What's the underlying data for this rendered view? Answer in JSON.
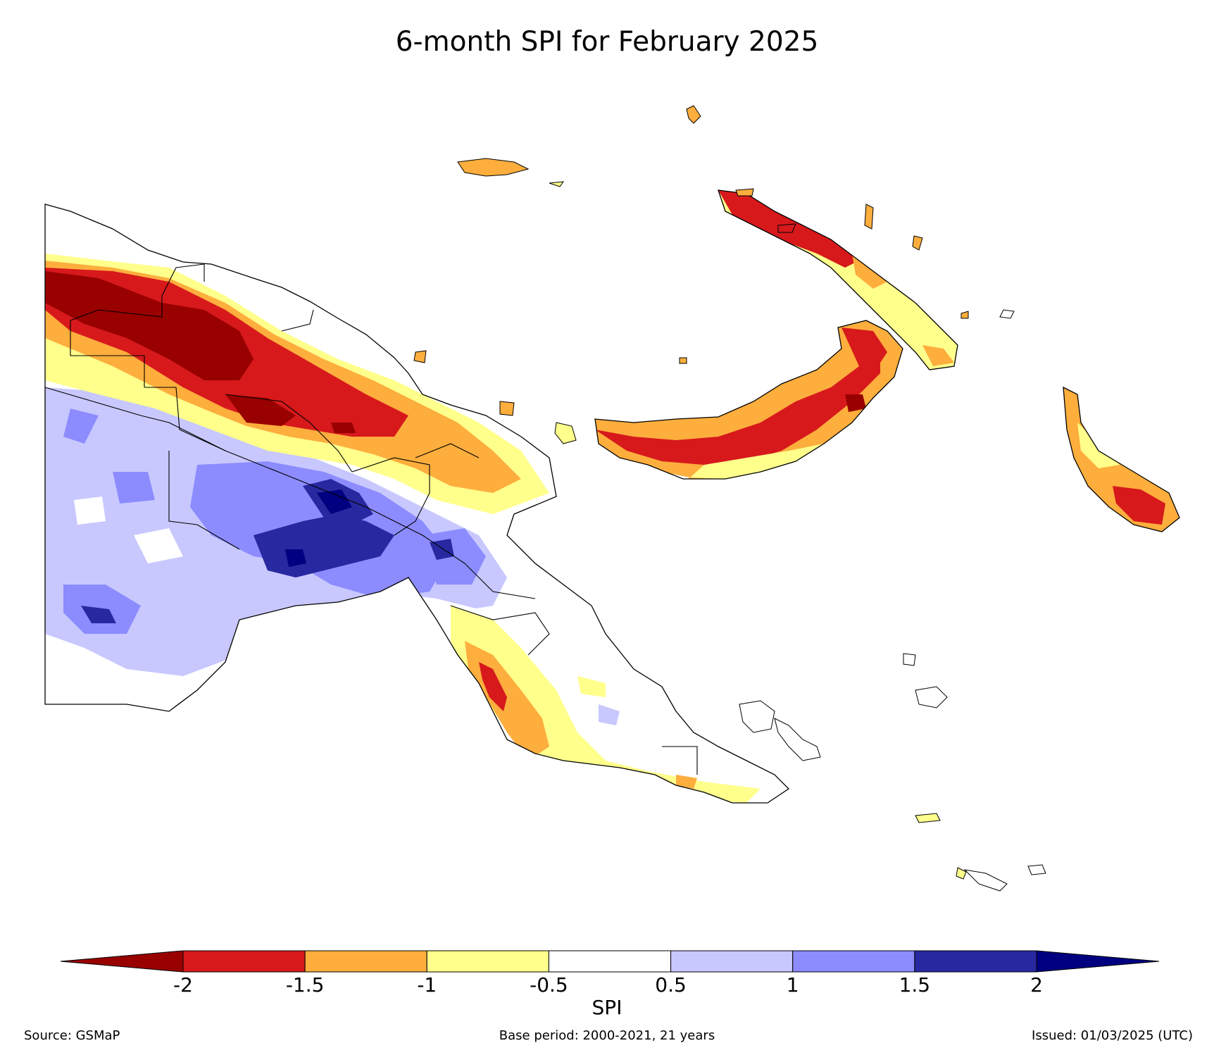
{
  "title": "6-month SPI for February 2025",
  "colors": {
    "below_-2": "#990000",
    "-2_to_-1.5": "#d7191c",
    "-1.5_to_-1": "#fdae3d",
    "-1_to_-0.5": "#ffff8c",
    "-0.5_to_0.5": "#ffffff",
    "0.5_to_1": "#c8c8ff",
    "1_to_1.5": "#8c8cff",
    "1.5_to_2": "#2828a0",
    "above_2": "#000080",
    "boundary": "#000000"
  },
  "colorbar": {
    "label": "SPI",
    "ticks": [
      "-2",
      "-1.5",
      "-1",
      "-0.5",
      "0.5",
      "1",
      "1.5",
      "2"
    ],
    "tick_values": [
      -2,
      -1.5,
      -1,
      -0.5,
      0.5,
      1,
      1.5,
      2
    ],
    "bins": [
      {
        "from": null,
        "to": -2,
        "color": "#990000",
        "extend": "min"
      },
      {
        "from": -2,
        "to": -1.5,
        "color": "#d7191c"
      },
      {
        "from": -1.5,
        "to": -1,
        "color": "#fdae3d"
      },
      {
        "from": -1,
        "to": -0.5,
        "color": "#ffff8c"
      },
      {
        "from": -0.5,
        "to": 0.5,
        "color": "#ffffff"
      },
      {
        "from": 0.5,
        "to": 1,
        "color": "#c8c8ff"
      },
      {
        "from": 1,
        "to": 1.5,
        "color": "#8c8cff"
      },
      {
        "from": 1.5,
        "to": 2,
        "color": "#2828a0"
      },
      {
        "from": 2,
        "to": null,
        "color": "#000080",
        "extend": "max"
      }
    ]
  },
  "footer": {
    "source": "Source: GSMaP",
    "base_period": "Base period: 2000-2021, 21 years",
    "issued": "Issued: 01/03/2025 (UTC)"
  }
}
